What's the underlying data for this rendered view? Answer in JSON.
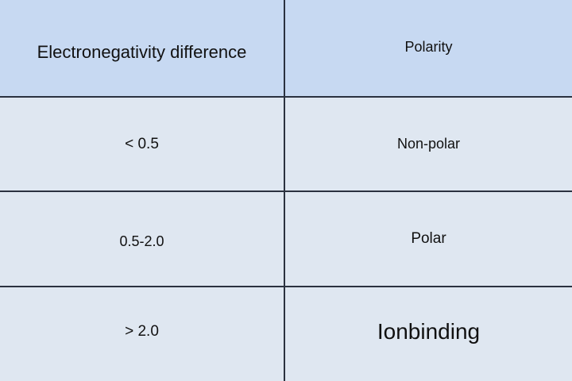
{
  "table": {
    "headers": [
      "Electronegativity difference",
      "Polarity"
    ],
    "rows": [
      [
        "< 0.5",
        "Non-polar"
      ],
      [
        "0.5-2.0",
        "Polar"
      ],
      [
        "> 2.0",
        "Ionbinding"
      ]
    ]
  },
  "colors": {
    "header_bg": "#c7d9f2",
    "body_bg": "#dfe7f1",
    "border": "#2b3240"
  }
}
